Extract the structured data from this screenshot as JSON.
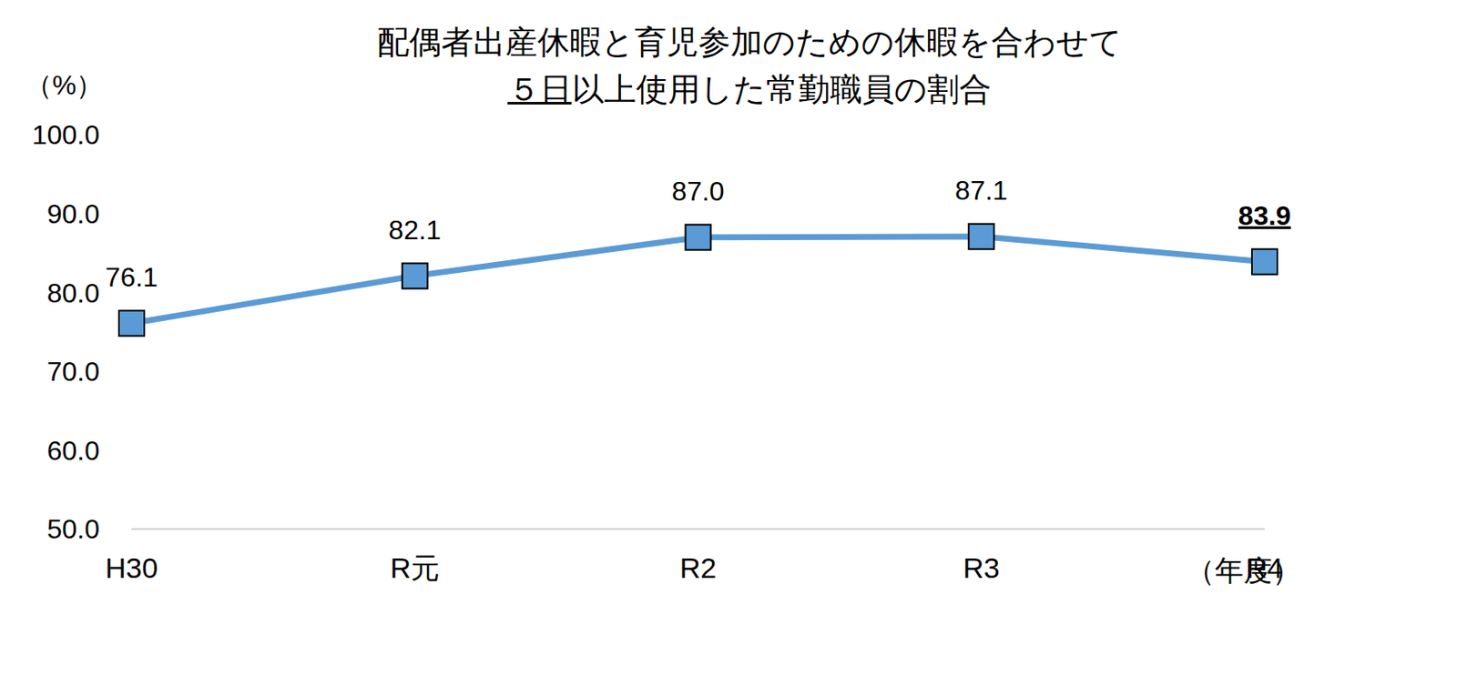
{
  "chart_data": {
    "type": "line",
    "title": [
      "配偶者出産休暇と育児参加のための休暇を合わせて",
      "５日以上使用した常勤職員の割合"
    ],
    "y_label": "（%）",
    "x_label": "（年度）",
    "categories": [
      "H30",
      "R元",
      "R2",
      "R3",
      "R4"
    ],
    "values": [
      76.1,
      82.1,
      87.0,
      87.1,
      83.9
    ],
    "value_labels": [
      "76.1",
      "82.1",
      "87.0",
      "87.1",
      "83.9"
    ],
    "color": "#5b9bd5",
    "marker": "square",
    "data_labels": true,
    "grid": false,
    "ylim": [
      50,
      100
    ],
    "yticks": [
      {
        "value": 50,
        "label": "50.0"
      },
      {
        "value": 60,
        "label": "60.0"
      },
      {
        "value": 70,
        "label": "70.0"
      },
      {
        "value": 80,
        "label": "80.0"
      },
      {
        "value": 90,
        "label": "90.0"
      },
      {
        "value": 100,
        "label": "100.0"
      }
    ]
  }
}
